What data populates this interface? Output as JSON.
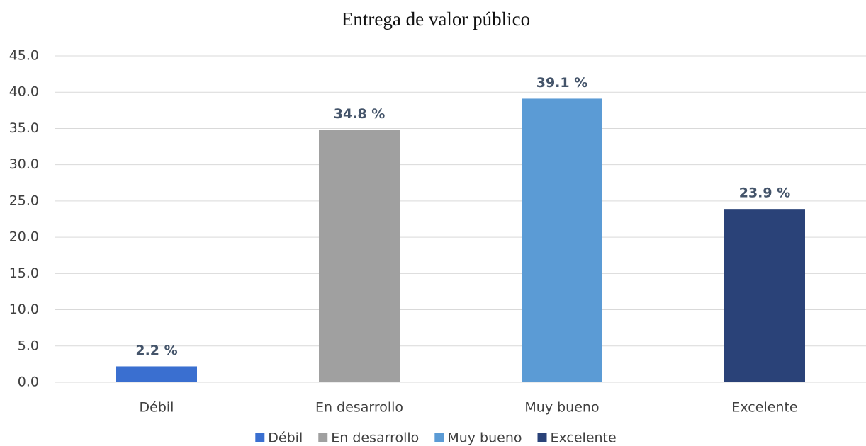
{
  "chart_data": {
    "type": "bar",
    "title": "Entrega de valor público",
    "categories": [
      "Débil",
      "En desarrollo",
      "Muy bueno",
      "Excelente"
    ],
    "values": [
      2.2,
      34.8,
      39.1,
      23.9
    ],
    "value_labels": [
      "2.2 %",
      "34.8 %",
      "39.1 %",
      "23.9 %"
    ],
    "colors": [
      "#3a6fd0",
      "#a0a0a0",
      "#5b9bd5",
      "#2a4278"
    ],
    "ylim": [
      0,
      45
    ],
    "yticks": [
      {
        "value": 0,
        "label": "0.0"
      },
      {
        "value": 5,
        "label": "5.0"
      },
      {
        "value": 10,
        "label": "10.0"
      },
      {
        "value": 15,
        "label": "15.0"
      },
      {
        "value": 20,
        "label": "20.0"
      },
      {
        "value": 25,
        "label": "25.0"
      },
      {
        "value": 30,
        "label": "30.0"
      },
      {
        "value": 35,
        "label": "35.0"
      },
      {
        "value": 40,
        "label": "40.0"
      },
      {
        "value": 45,
        "label": "45.0"
      }
    ],
    "grid": true,
    "legend": "bottom"
  }
}
